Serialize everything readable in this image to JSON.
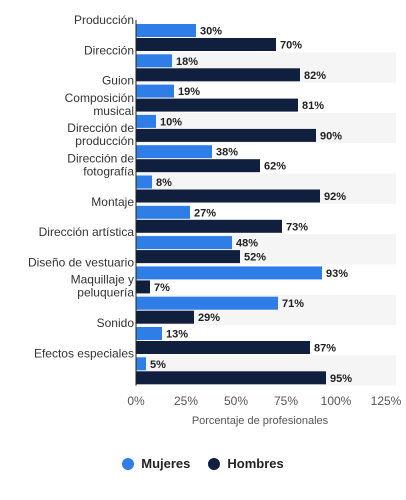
{
  "chart_data": {
    "type": "bar",
    "orientation": "horizontal",
    "categories": [
      [
        "Producción"
      ],
      [
        "Dirección"
      ],
      [
        "Guion"
      ],
      [
        "Composición",
        "musical"
      ],
      [
        "Dirección de",
        "producción"
      ],
      [
        "Dirección de",
        "fotografía"
      ],
      [
        "Montaje"
      ],
      [
        "Dirección artística"
      ],
      [
        "Diseño de vestuario"
      ],
      [
        "Maquillaje y",
        "peluquería"
      ],
      [
        "Sonido"
      ],
      [
        "Efectos especiales"
      ]
    ],
    "series": [
      {
        "name": "Mujeres",
        "color": "#2f7ee8",
        "values": [
          30,
          18,
          19,
          10,
          38,
          8,
          27,
          48,
          93,
          71,
          13,
          5
        ]
      },
      {
        "name": "Hombres",
        "color": "#0f1f3d",
        "values": [
          70,
          82,
          81,
          90,
          62,
          92,
          73,
          52,
          7,
          29,
          87,
          95
        ]
      }
    ],
    "value_suffix": "%",
    "xlabel": "Porcentaje de profesionales",
    "xlim": [
      0,
      125
    ],
    "xticks": [
      "0%",
      "25%",
      "50%",
      "75%",
      "100%",
      "125%"
    ],
    "grid": false,
    "banded_rows": true,
    "legend_position": "bottom"
  }
}
